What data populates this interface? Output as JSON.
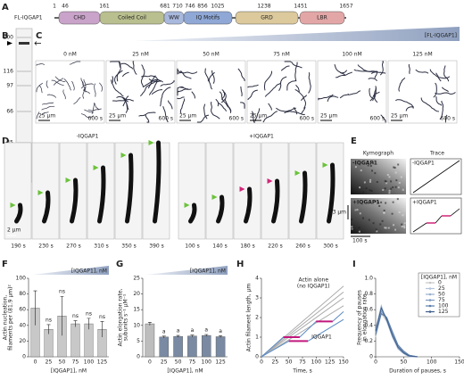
{
  "panel_labels": [
    "A",
    "B",
    "C",
    "D",
    "E",
    "F",
    "G",
    "H",
    "I"
  ],
  "domain_diagram": {
    "protein": "FL-IQGAP1",
    "domains": [
      "CHD",
      "Coiled Coil",
      "WW",
      "IQ Motifs",
      "GRD",
      "LBR"
    ],
    "residues": [
      1,
      46,
      161,
      681,
      710,
      746,
      856,
      1025,
      1238,
      1451,
      1657
    ]
  },
  "gel": {
    "markers": [
      200,
      116,
      97,
      66,
      45,
      31
    ]
  },
  "micrographs": {
    "ramp_label": "[FL-IQGAP1]",
    "concentrations": [
      "0 nM",
      "25 nM",
      "50 nM",
      "75 nM",
      "100 nM",
      "125 nM"
    ],
    "scale_bar": "25 µm",
    "duration": "600 s"
  },
  "timelapse": {
    "conditions": [
      {
        "label": "-IQGAP1",
        "times": [
          "190 s",
          "230 s",
          "270 s",
          "310 s",
          "350 s",
          "390 s"
        ]
      },
      {
        "label": "+IQGAP1",
        "times": [
          "100 s",
          "140 s",
          "180 s",
          "220 s",
          "260 s",
          "300 s"
        ]
      }
    ],
    "scale_bar": "2 µm"
  },
  "kymograph": {
    "headers": [
      "Kymograph",
      "Trace"
    ],
    "rows": [
      "-IQGAP1",
      "+IQGAP1"
    ],
    "scale_length": "3 µm",
    "scale_time": "100 s"
  },
  "chart_data": [
    {
      "type": "bar",
      "ramp_label": "[IQGAP1], nM",
      "y_label": [
        "Actin nucleation,",
        "filaments per (81.9 µm)²"
      ],
      "x_label": "[IQGAP1], nM",
      "categories": [
        "0",
        "25",
        "50",
        "75",
        "100",
        "125"
      ],
      "values": [
        62,
        35,
        52,
        42,
        42,
        35
      ],
      "errors": [
        22,
        6,
        25,
        4,
        7,
        10
      ],
      "significance": [
        null,
        "ns",
        "ns",
        "ns",
        "ns",
        "ns"
      ],
      "colors": [
        "#c8c8c8",
        "#c8c8c8",
        "#c8c8c8",
        "#c8c8c8",
        "#c8c8c8",
        "#c8c8c8"
      ],
      "ylim": [
        0,
        100
      ],
      "yticks": [
        0,
        20,
        40,
        60,
        80,
        100
      ]
    },
    {
      "type": "bar",
      "ramp_label": "[IQGAP1], nM",
      "y_label": [
        "Actin elongation rate,",
        "subunits s⁻¹ µM⁻¹"
      ],
      "x_label": "[IQGAP1], nM",
      "categories": [
        "0",
        "25",
        "50",
        "75",
        "100",
        "125"
      ],
      "values": [
        10.5,
        6.3,
        6.5,
        6.6,
        6.8,
        6.4
      ],
      "errors": [
        0.5,
        0.3,
        0.3,
        0.3,
        0.3,
        0.3
      ],
      "significance": [
        null,
        "a",
        "a",
        "a",
        "a",
        "a"
      ],
      "colors": [
        "#bdbdbd",
        "#7a8aa3",
        "#7a8aa3",
        "#7a8aa3",
        "#7a8aa3",
        "#7a8aa3"
      ],
      "ylim": [
        0,
        25
      ],
      "yticks": [
        0,
        5,
        10,
        15,
        20,
        25
      ]
    },
    {
      "type": "line",
      "y_label": "Actin filament length, µm",
      "x_label": "Time, s",
      "annotations": [
        "Actin alone",
        "(no IQGAP1)",
        "IQGAP1"
      ],
      "xlim": [
        0,
        150
      ],
      "xticks": [
        0,
        25,
        50,
        75,
        100,
        125,
        150
      ],
      "ylim": [
        0,
        4
      ],
      "yticks": [
        0,
        1,
        2,
        3,
        4
      ],
      "series": [
        {
          "color": "#aaaaaa",
          "x": [
            0,
            150
          ],
          "values": [
            0,
            3.6
          ]
        },
        {
          "color": "#aaaaaa",
          "x": [
            0,
            150
          ],
          "values": [
            0,
            3.3
          ]
        },
        {
          "color": "#aaaaaa",
          "x": [
            0,
            150
          ],
          "values": [
            0,
            3.0
          ]
        },
        {
          "color": "#aaaaaa",
          "x": [
            0,
            150
          ],
          "values": [
            0,
            2.6
          ]
        },
        {
          "color": "#5b8bc4",
          "x": [
            0,
            40,
            70,
            100,
            130,
            150
          ],
          "values": [
            0,
            1.0,
            1.0,
            1.8,
            1.8,
            2.3
          ]
        },
        {
          "color": "#5b8bc4",
          "x": [
            0,
            50,
            85,
            150
          ],
          "values": [
            0,
            0.8,
            0.8,
            1.9
          ]
        },
        {
          "color": "#c2187c",
          "x": [
            40,
            70
          ],
          "values": [
            1.0,
            1.0
          ]
        },
        {
          "color": "#c2187c",
          "x": [
            100,
            130
          ],
          "values": [
            1.8,
            1.8
          ]
        },
        {
          "color": "#c2187c",
          "x": [
            50,
            85
          ],
          "values": [
            0.8,
            0.8
          ]
        }
      ]
    },
    {
      "type": "line",
      "y_label": [
        "Frequency of pauses",
        "in elongation rate"
      ],
      "x_label": "Duration of pauses, s",
      "legend_title": "[IQGAP1], nM",
      "legend": "top-right",
      "xlim": [
        0,
        150
      ],
      "xticks": [
        0,
        50,
        100,
        150
      ],
      "ylim": [
        0,
        1
      ],
      "yticks": [
        0,
        0.2,
        0.4,
        0.6,
        0.8,
        {
          "value": 1,
          "label": "1.0"
        }
      ],
      "x": [
        0,
        10,
        20,
        30,
        40,
        50,
        60,
        75
      ],
      "series": [
        {
          "name": "0",
          "color": "#c8c8c8",
          "values": [
            0.25,
            0.55,
            0.45,
            0.3,
            0.15,
            0.08,
            0.02,
            0
          ]
        },
        {
          "name": "25",
          "color": "#b3c4da",
          "values": [
            0.3,
            0.6,
            0.5,
            0.28,
            0.12,
            0.05,
            0.02,
            0
          ]
        },
        {
          "name": "50",
          "color": "#98b0cf",
          "values": [
            0.35,
            0.65,
            0.45,
            0.25,
            0.1,
            0.04,
            0,
            0
          ]
        },
        {
          "name": "75",
          "color": "#7b99c0",
          "values": [
            0.3,
            0.58,
            0.48,
            0.3,
            0.14,
            0.06,
            0.01,
            0
          ]
        },
        {
          "name": "100",
          "color": "#5c7eaa",
          "values": [
            0.28,
            0.55,
            0.5,
            0.32,
            0.15,
            0.07,
            0.02,
            0
          ]
        },
        {
          "name": "125",
          "color": "#3c5d8a",
          "values": [
            0.33,
            0.62,
            0.47,
            0.27,
            0.12,
            0.05,
            0.01,
            0
          ]
        }
      ]
    }
  ]
}
